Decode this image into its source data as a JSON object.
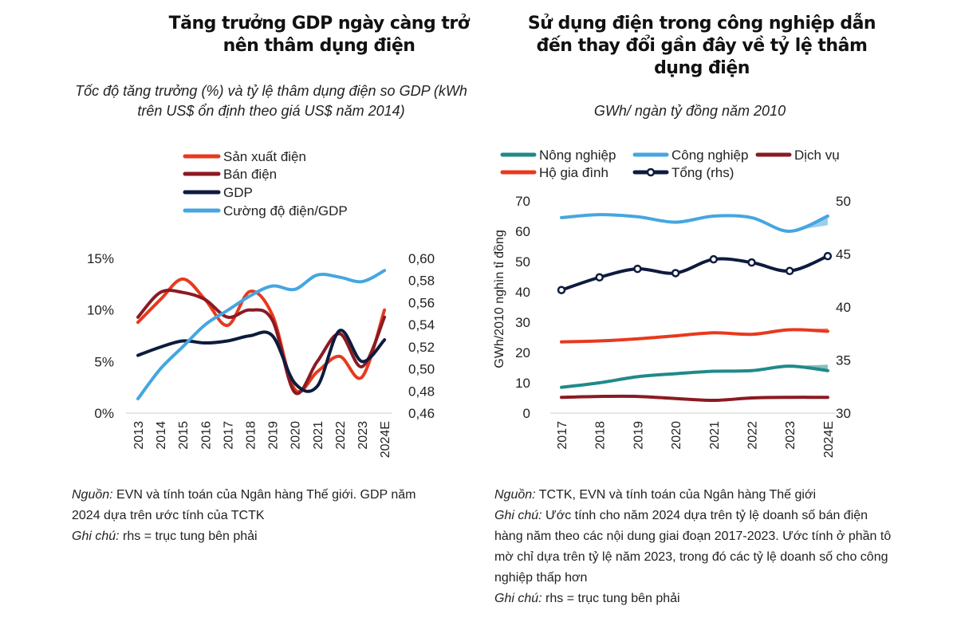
{
  "chart_data": [
    {
      "type": "line",
      "title": "Tăng trưởng GDP ngày càng trở nên thâm dụng điện",
      "subtitle": "Tốc độ tăng trưởng (%) và tỷ lệ thâm dụng điện so GDP (kWh trên US$ ổn định theo giá US$ năm 2014)",
      "categories": [
        "2013",
        "2014",
        "2015",
        "2016",
        "2017",
        "2018",
        "2019",
        "2020",
        "2021",
        "2022",
        "2023",
        "2024E"
      ],
      "ylim": [
        0,
        15
      ],
      "y_ticks": [
        "0%",
        "5%",
        "10%",
        "15%"
      ],
      "y2lim": [
        0.46,
        0.6
      ],
      "y2_ticks": [
        "0,46",
        "0,48",
        "0,50",
        "0,52",
        "0,54",
        "0,56",
        "0,58",
        "0,60"
      ],
      "grid": false,
      "legend_position": "top",
      "series": [
        {
          "name": "Sản xuất điện",
          "axis": "left",
          "color": "#e8391d",
          "values": [
            8.8,
            11,
            13,
            11,
            8.5,
            11.8,
            9.5,
            2.3,
            4,
            5.5,
            3.5,
            10
          ]
        },
        {
          "name": "Bán điện",
          "axis": "left",
          "color": "#8b1a22",
          "values": [
            9.3,
            11.7,
            11.7,
            11,
            9.3,
            10,
            9,
            2,
            5,
            7.7,
            4.5,
            9.3
          ]
        },
        {
          "name": "GDP",
          "axis": "left",
          "color": "#0d1b3e",
          "values": [
            5.6,
            6.4,
            7,
            6.8,
            7,
            7.5,
            7.5,
            2.9,
            2.6,
            8,
            5,
            7.1
          ]
        },
        {
          "name": "Cường độ điện/GDP",
          "axis": "right",
          "color": "#45a6e0",
          "values": [
            0.473,
            0.5,
            0.52,
            0.54,
            0.553,
            0.566,
            0.575,
            0.572,
            0.585,
            0.583,
            0.579,
            0.589
          ]
        }
      ],
      "notes": {
        "source_label": "Nguồn:",
        "source": " EVN và tính toán của Ngân hàng Thế giới. GDP năm 2024 dựa trên ước tính của TCTK",
        "note_label": "Ghi chú:",
        "note": " rhs = trục tung bên phải"
      }
    },
    {
      "type": "line",
      "title": "Sử dụng điện trong công nghiệp dẫn đến thay đổi gần đây về tỷ lệ thâm dụng điện",
      "subtitle": "GWh/ ngàn tỷ đồng năm 2010",
      "ylabel": "GWh/2010 nghìn tỉ đồng",
      "categories": [
        "2017",
        "2018",
        "2019",
        "2020",
        "2021",
        "2022",
        "2023",
        "2024E"
      ],
      "ylim": [
        0,
        70
      ],
      "y_ticks": [
        "0",
        "10",
        "20",
        "30",
        "40",
        "50",
        "60",
        "70"
      ],
      "y2lim": [
        30,
        50
      ],
      "y2_ticks": [
        "30",
        "35",
        "40",
        "45",
        "50"
      ],
      "grid": false,
      "legend_position": "top",
      "series": [
        {
          "name": "Nông nghiệp",
          "axis": "left",
          "color": "#1f8a8a",
          "values": [
            8.5,
            10,
            12,
            13,
            13.8,
            14,
            15.5,
            14
          ],
          "estimate_alt_2024": 16
        },
        {
          "name": "Công nghiệp",
          "axis": "left",
          "color": "#45a6e0",
          "values": [
            64.5,
            65.5,
            64.8,
            63,
            65,
            64.5,
            60,
            65
          ],
          "estimate_alt_2024": 62
        },
        {
          "name": "Dịch vụ",
          "axis": "left",
          "color": "#8b1a22",
          "values": [
            5.2,
            5.5,
            5.5,
            4.8,
            4.2,
            5,
            5.2,
            5.2
          ]
        },
        {
          "name": "Hộ gia đình",
          "axis": "left",
          "color": "#e8391d",
          "values": [
            23.5,
            23.8,
            24.5,
            25.5,
            26.5,
            26,
            27.5,
            27
          ],
          "estimate_alt_2024": 28
        },
        {
          "name": "Tổng (rhs)",
          "axis": "right",
          "color": "#0d1b3e",
          "markers": true,
          "values": [
            41.6,
            42.8,
            43.6,
            43.2,
            44.5,
            44.2,
            43.4,
            44.8
          ]
        }
      ],
      "notes": {
        "source_label": "Nguồn:",
        "source": " TCTK, EVN và tính toán của Ngân hàng Thế giới",
        "estimate_label": "Ghi chú:",
        "estimate": " Ước tính cho năm 2024 dựa trên tỷ lệ doanh số bán điện hàng năm theo các nội dung giai đoạn 2017-2023. Ước tính ở phần tô mờ chỉ dựa trên tỷ lệ năm 2023, trong đó các tỷ lệ doanh số cho công nghiệp thấp hơn",
        "note_label": "Ghi chú:",
        "note": " rhs = trục tung bên phải"
      }
    }
  ]
}
